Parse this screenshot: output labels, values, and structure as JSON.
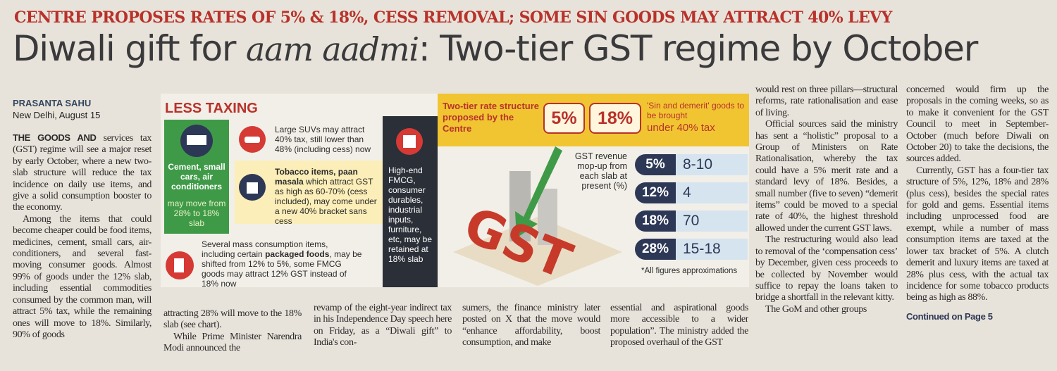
{
  "header": {
    "kicker": "CENTRE PROPOSES RATES OF 5% & 18%, CESS REMOVAL; SOME SIN GOODS MAY ATTRACT 40% LEVY",
    "headline": {
      "lead": "Diwali gift for",
      "italic": "aam aadmi",
      "rest": ": Two-tier GST regime by October"
    },
    "byline": "PRASANTA SAHU",
    "dateline": "New Delhi, August 15"
  },
  "article": {
    "col1": {
      "lead": "THE GOODS AND",
      "paragraphs": [
        "services tax (GST) regime will see a major reset by early October, where a new two-slab structure will reduce the tax incidence on daily use items, and give a solid consumption booster to the economy.",
        "Among the items that could become cheaper could be food items, medicines, cement, small cars, air-conditioners, and several fast-moving consumer goods. Almost 99% of goods under the 12% slab, including essential commodities consumed by the common man, will attract 5% tax, while the remaining ones will move to 18%. Similarly, 90% of goods"
      ]
    },
    "col2": [
      "attracting 28% will move to the 18% slab (see chart).",
      "While Prime Minister Narendra Modi announced the"
    ],
    "col3": [
      "revamp of the eight-year indirect tax in his Independence Day speech here on Friday, as a “Diwali gift” to India's con-"
    ],
    "col4": [
      "sumers, the finance ministry later posted on X that the move would “enhance affordability, boost consumption, and make"
    ],
    "col5": [
      "essential and aspirational goods more accessible to a wider population”. The ministry added the proposed overhaul of the GST"
    ],
    "col6": [
      "would rest on three pillars—structural reforms, rate rationalisation and ease of living.",
      "Official sources said the ministry has sent a “holistic” proposal to a Group of Ministers on Rate Rationalisation, whereby the tax could have a 5% merit rate and a standard levy of 18%. Besides, a small number (five to seven) “demerit items” could be moved to a special rate of 40%, the highest threshold allowed under the current GST laws.",
      "The restructuring would also lead to removal of the ‘compensation cess’ by December, given cess proceeds to be collected by November would suffice to repay the loans taken to bridge a shortfall in the relevant kitty.",
      "The GoM and other groups"
    ],
    "col7": [
      "concerned would firm up the proposals in the coming weeks, so as to make it convenient for the GST Council to meet in September-October (much before Diwali on October 20) to take the decisions, the sources added.",
      "Currently, GST has a four-tier tax structure of 5%, 12%, 18% and 28% (plus cess), besides the special rates for gold and gems. Essential items including unprocessed food are exempt, while a number of mass consumption items are taxed at the lower tax bracket of 5%. A clutch demerit and luxury items are taxed at 28% plus cess, with the actual tax incidence for some tobacco products being as high as 88%."
    ],
    "continued": "Continued on Page 5"
  },
  "infographic": {
    "title": "LESS TAXING",
    "green": {
      "items": "Cement, small cars, air conditioners",
      "note": "may move from 28% to 18% slab"
    },
    "suv": "Large SUVs may attract 40% tax, still lower than 48% (including cess) now",
    "tobacco": {
      "bold": "Tobacco items, paan masala",
      "text": "which attract GST as high as 60-70% (cess included), may come under a new 40% bracket sans cess"
    },
    "mass": {
      "text1": "Several mass consumption items, including certain",
      "bold": "packaged foods",
      "text2": ", may be shifted from 12% to 5%, some FMCG goods may attract 12% GST instead of 18% now"
    },
    "dark": "High-end FMCG, consumer durables, industrial inputs, furniture, etc, may be retained at 18% slab",
    "banner": {
      "label": "Two-tier rate structure proposed by the Centre",
      "rate1": "5%",
      "rate2": "18%",
      "sin1": "'Sin and demerit' goods to be brought",
      "sin2": "under 40% tax"
    },
    "revenue_title": "GST revenue mop-up from each slab at present (%)",
    "revenue": [
      [
        "5%",
        "8-10"
      ],
      [
        "12%",
        "4"
      ],
      [
        "18%",
        "70"
      ],
      [
        "28%",
        "15-18"
      ]
    ],
    "note": "*All figures approximations"
  }
}
